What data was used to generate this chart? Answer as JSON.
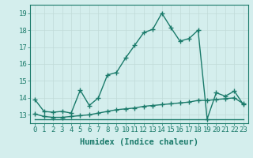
{
  "line1_x": [
    0,
    1,
    2,
    3,
    4,
    5,
    6,
    7,
    8,
    9,
    10,
    11,
    12,
    13,
    14,
    15,
    16,
    17,
    18,
    19,
    20,
    21,
    22,
    23
  ],
  "line1_y": [
    13.9,
    13.2,
    13.15,
    13.2,
    13.1,
    14.45,
    13.55,
    14.0,
    15.35,
    15.5,
    16.35,
    17.1,
    17.85,
    18.05,
    19.0,
    18.15,
    17.35,
    17.5,
    18.0,
    12.75,
    14.3,
    14.1,
    14.4,
    13.6
  ],
  "line2_x": [
    0,
    1,
    2,
    3,
    4,
    5,
    6,
    7,
    8,
    9,
    10,
    11,
    12,
    13,
    14,
    15,
    16,
    17,
    18,
    19,
    20,
    21,
    22,
    23
  ],
  "line2_y": [
    13.05,
    12.9,
    12.85,
    12.85,
    12.9,
    12.95,
    13.0,
    13.1,
    13.2,
    13.3,
    13.35,
    13.4,
    13.5,
    13.55,
    13.6,
    13.65,
    13.7,
    13.75,
    13.85,
    13.85,
    13.9,
    13.95,
    14.0,
    13.65
  ],
  "line3_x": [
    0,
    1,
    2,
    3,
    4,
    5,
    6,
    7,
    8,
    9,
    10,
    11,
    12,
    13,
    14,
    15,
    16,
    17,
    18,
    19,
    20,
    21,
    22,
    23
  ],
  "line3_y": [
    12.75,
    12.75,
    12.75,
    12.75,
    12.75,
    12.75,
    12.75,
    12.75,
    12.75,
    12.75,
    12.75,
    12.75,
    12.75,
    12.75,
    12.75,
    12.75,
    12.75,
    12.75,
    12.75,
    12.75,
    12.75,
    12.75,
    12.75,
    12.75
  ],
  "line_color": "#1a7a6a",
  "bg_color": "#d4eeed",
  "grid_color": "#c0dbd8",
  "xlabel": "Humidex (Indice chaleur)",
  "ylim": [
    12.5,
    19.5
  ],
  "xlim": [
    -0.5,
    23.5
  ],
  "yticks": [
    13,
    14,
    15,
    16,
    17,
    18,
    19
  ],
  "xtick_labels": [
    "0",
    "1",
    "2",
    "3",
    "4",
    "5",
    "6",
    "7",
    "8",
    "9",
    "10",
    "11",
    "12",
    "13",
    "14",
    "15",
    "16",
    "17",
    "18",
    "19",
    "20",
    "21",
    "22",
    "23"
  ],
  "marker": "+",
  "marker_size": 4,
  "linewidth": 1.0,
  "xlabel_fontsize": 7.5,
  "tick_fontsize": 6.5
}
